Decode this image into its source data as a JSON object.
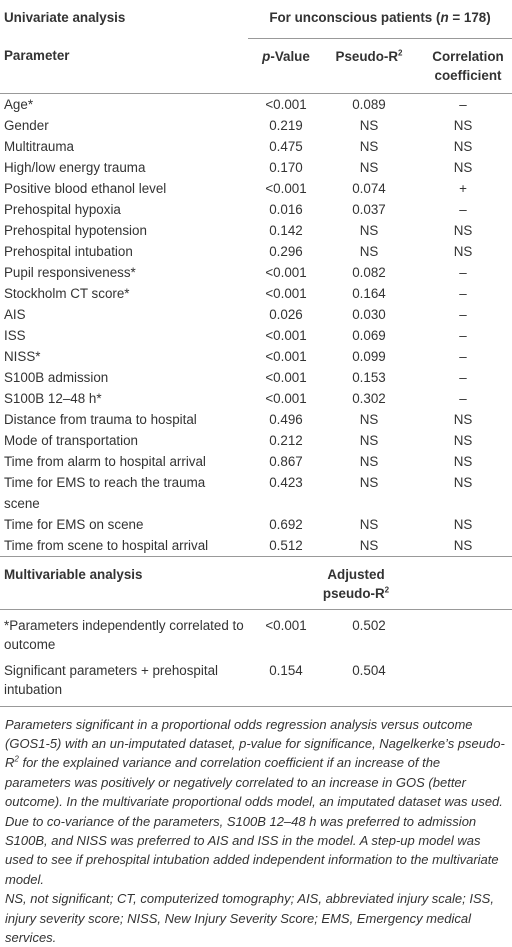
{
  "header": {
    "univariate": "Univariate analysis",
    "group": [
      "For unconscious patients (",
      "n",
      " = 178)"
    ],
    "parameter": "Parameter",
    "p_value": [
      "p",
      "-Value"
    ],
    "pseudo_r2": [
      "Pseudo-R",
      "2"
    ],
    "correlation": "Correlation coefficient"
  },
  "rows": [
    [
      "Age*",
      "<0.001",
      "0.089",
      "–"
    ],
    [
      "Gender",
      "0.219",
      "NS",
      "NS"
    ],
    [
      "Multitrauma",
      "0.475",
      "NS",
      "NS"
    ],
    [
      "High/low energy trauma",
      "0.170",
      "NS",
      "NS"
    ],
    [
      "Positive blood ethanol level",
      "<0.001",
      "0.074",
      "+"
    ],
    [
      "Prehospital hypoxia",
      "0.016",
      "0.037",
      "–"
    ],
    [
      "Prehospital hypotension",
      "0.142",
      "NS",
      "NS"
    ],
    [
      "Prehospital intubation",
      "0.296",
      "NS",
      "NS"
    ],
    [
      "Pupil responsiveness*",
      "<0.001",
      "0.082",
      "–"
    ],
    [
      "Stockholm CT score*",
      "<0.001",
      "0.164",
      "–"
    ],
    [
      "AIS",
      "0.026",
      "0.030",
      "–"
    ],
    [
      "ISS",
      "<0.001",
      "0.069",
      "–"
    ],
    [
      "NISS*",
      "<0.001",
      "0.099",
      "–"
    ],
    [
      "S100B admission",
      "<0.001",
      "0.153",
      "–"
    ],
    [
      "S100B 12–48 h*",
      "<0.001",
      "0.302",
      "–"
    ],
    [
      "Distance from trauma to hospital",
      "0.496",
      "NS",
      "NS"
    ],
    [
      "Mode of transportation",
      "0.212",
      "NS",
      "NS"
    ],
    [
      "Time from alarm to hospital arrival",
      "0.867",
      "NS",
      "NS"
    ],
    [
      "Time for EMS to reach the trauma scene",
      "0.423",
      "NS",
      "NS"
    ],
    [
      "Time for EMS on scene",
      "0.692",
      "NS",
      "NS"
    ],
    [
      "Time from scene to hospital arrival",
      "0.512",
      "NS",
      "NS"
    ]
  ],
  "multivariable": {
    "title": "Multivariable analysis",
    "adjusted": [
      "Adjusted pseudo-R",
      "2"
    ],
    "rows": [
      [
        "*Parameters independently correlated to outcome",
        "<0.001",
        "0.502"
      ],
      [
        "Significant parameters + prehospital intubation",
        "0.154",
        "0.504"
      ]
    ]
  },
  "notes": [
    [
      "Parameters significant in a proportional odds regression analysis versus outcome (GOS1-5) with an un-imputated dataset, p-value for significance, Nagelkerke’s pseudo-R",
      "2",
      " for the explained variance and correlation coefficient if an increase of the parameters was positively or negatively correlated to an increase in GOS (better outcome). In the multivariate proportional odds model, an imputated dataset was used. Due to co-variance of the parameters, S100B 12–48 h was preferred to admission S100B, and NISS was preferred to AIS and ISS in the model. A step-up model was used to see if prehospital intubation added independent information to the multivariate model."
    ],
    [
      "NS, not significant; CT, computerized tomography; AIS, abbreviated injury scale; ISS, injury severity score; NISS, New Injury Severity Score; EMS, Emergency medical services."
    ]
  ]
}
